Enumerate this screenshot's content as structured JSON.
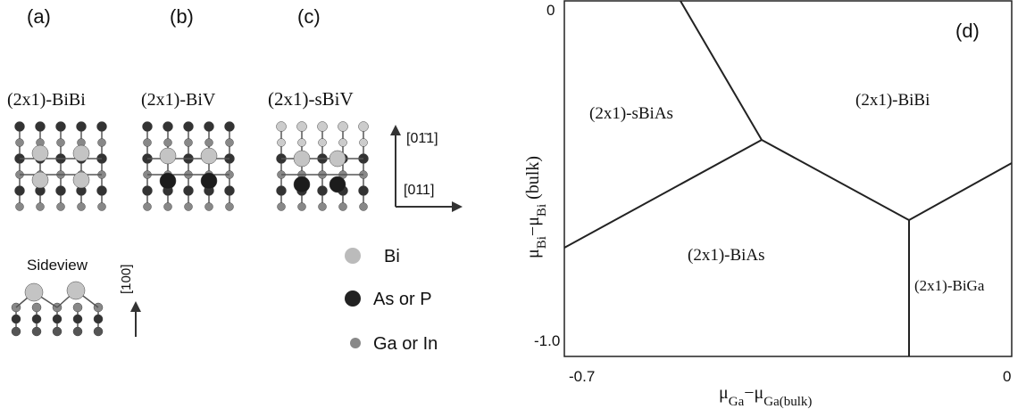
{
  "panels": [
    {
      "label": "(a)",
      "title": "(2x1)-BiBi"
    },
    {
      "label": "(b)",
      "title": "(2x1)-BiV"
    },
    {
      "label": "(c)",
      "title": "(2x1)-sBiV"
    }
  ],
  "directions": {
    "vertical": "[01̄1]",
    "horizontal": "[011]",
    "sideview": "Sideview",
    "normal": "[100]"
  },
  "legend": [
    {
      "label": "Bi"
    },
    {
      "label": "As or P"
    },
    {
      "label": "Ga or In"
    }
  ],
  "phase_diagram": {
    "label": "(d)",
    "regions": [
      "(2x1)-sBiAs",
      "(2x1)-BiBi",
      "(2x1)-BiAs",
      "(2x1)-BiGa"
    ],
    "x_ticks": [
      "-0.7",
      "0"
    ],
    "y_ticks": [
      "0",
      "-1.0"
    ],
    "x_label": {
      "parts": [
        "μ",
        "Ga",
        "−μ",
        "Ga(bulk)"
      ]
    },
    "y_label": {
      "parts": [
        "μ",
        "Bi",
        "−μ",
        "Bi",
        " (bulk)"
      ]
    }
  }
}
